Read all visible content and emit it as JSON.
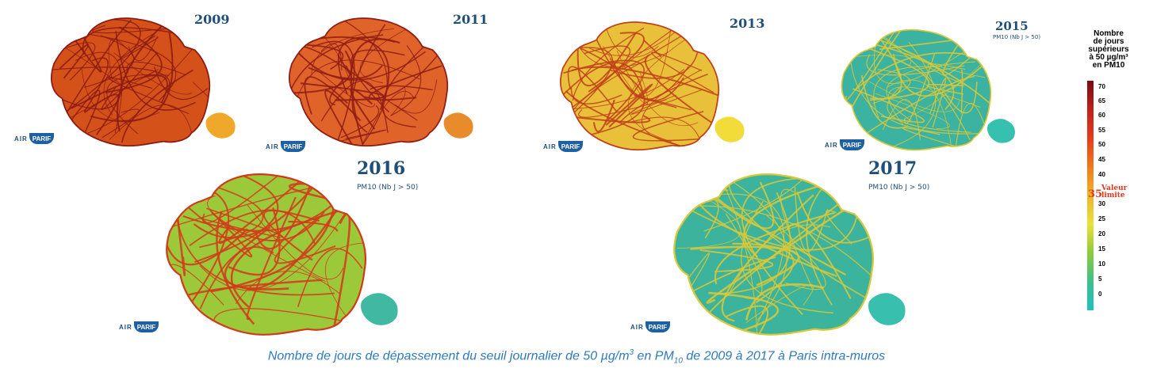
{
  "maps": [
    {
      "year": "2009",
      "subtitle": "",
      "fill": "#d4521a",
      "road": "#8c1a12",
      "lobe": "#f0a82a"
    },
    {
      "year": "2011",
      "subtitle": "",
      "fill": "#e0632a",
      "road": "#8f1c14",
      "lobe": "#e88b2a"
    },
    {
      "year": "2013",
      "subtitle": "",
      "fill": "#e8c03a",
      "road": "#c0401a",
      "lobe": "#f1dc3a"
    },
    {
      "year": "2015",
      "subtitle": "PM10 (Nb J > 50)",
      "fill": "#3cb3a0",
      "road": "#d9c83a",
      "lobe": "#35c0b0"
    },
    {
      "year": "2016",
      "subtitle": "PM10 (Nb J > 50)",
      "fill": "#9cc93a",
      "road": "#d23a1a",
      "lobe": "#40b8a2"
    },
    {
      "year": "2017",
      "subtitle": "PM10 (Nb J > 50)",
      "fill": "#3cb39c",
      "road": "#d8c83a",
      "lobe": "#38bfae"
    }
  ],
  "logo": {
    "air": "AIR",
    "badge": "PARIF"
  },
  "legend": {
    "title_lines": [
      "Nombre",
      "de jours",
      "supérieurs",
      "à 50 µg/m³",
      "en PM10"
    ],
    "ticks": [
      "70",
      "65",
      "60",
      "55",
      "50",
      "45",
      "40",
      "30",
      "25",
      "20",
      "15",
      "10",
      "5",
      "0"
    ],
    "limit_value": "35",
    "limit_label_lines": [
      "Valeur",
      "limite"
    ],
    "colors": [
      "#7a0a12",
      "#c0201a",
      "#e83a1a",
      "#f07a1a",
      "#f2b42a",
      "#e8e23a",
      "#8ccc3a",
      "#3cc08a",
      "#20c0c0"
    ]
  },
  "caption": {
    "part1": "Nombre de jours de dépassement du seuil journalier de 50 µg/m",
    "sup": "3",
    "part2": " en PM",
    "sub": "10",
    "part3": " de 2009 à 2017 à Paris intra-muros"
  }
}
